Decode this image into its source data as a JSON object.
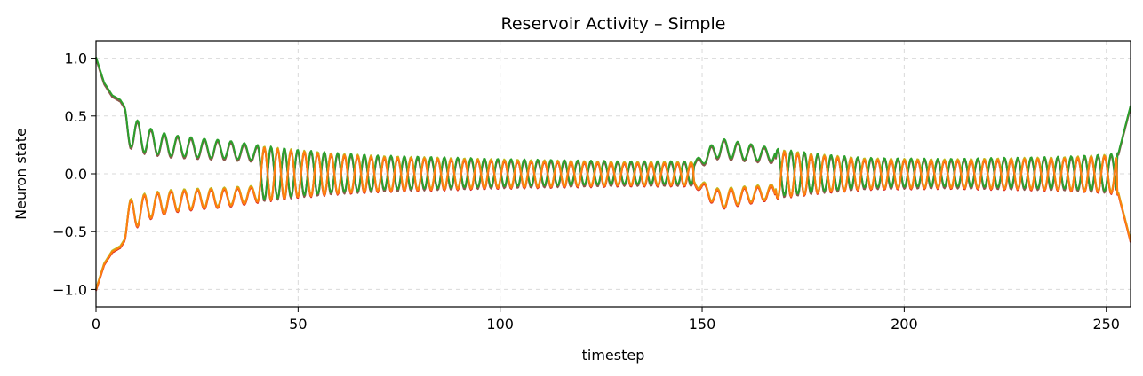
{
  "chart_data": {
    "type": "line",
    "title": "Reservoir Activity – Simple",
    "xlabel": "timestep",
    "ylabel": "Neuron state",
    "xlim": [
      0,
      256
    ],
    "ylim": [
      -1.15,
      1.15
    ],
    "xticks": [
      0,
      50,
      100,
      150,
      200,
      250
    ],
    "yticks": [
      1.0,
      0.5,
      0.0,
      -0.5,
      -1.0
    ],
    "ytick_labels": [
      "1.0",
      "0.5",
      "0.0",
      "−0.5",
      "−1.0"
    ],
    "grid": true,
    "legend": "none",
    "colors": [
      "#17becf",
      "#9467bd",
      "#8c564b",
      "#2ca02c",
      "#1f77b4",
      "#d62728",
      "#bcbd22",
      "#ff7f0e"
    ],
    "envelope_points": [
      [
        0,
        1.0
      ],
      [
        2,
        0.78
      ],
      [
        4,
        0.67
      ],
      [
        6,
        0.63
      ],
      [
        8,
        0.52
      ],
      [
        12,
        0.4
      ],
      [
        18,
        0.33
      ],
      [
        25,
        0.3
      ],
      [
        32,
        0.28
      ],
      [
        40,
        0.24
      ],
      [
        50,
        0.2
      ],
      [
        60,
        0.17
      ],
      [
        70,
        0.15
      ],
      [
        80,
        0.14
      ],
      [
        100,
        0.12
      ],
      [
        130,
        0.1
      ],
      [
        148,
        0.1
      ],
      [
        150,
        0.16
      ],
      [
        154,
        0.3
      ],
      [
        160,
        0.26
      ],
      [
        170,
        0.2
      ],
      [
        180,
        0.16
      ],
      [
        190,
        0.13
      ],
      [
        210,
        0.12
      ],
      [
        240,
        0.14
      ],
      [
        250,
        0.16
      ],
      [
        253,
        0.17
      ],
      [
        256,
        0.58
      ]
    ],
    "oscillation_period": 3.3,
    "series": [
      {
        "group": "upper",
        "offset": 0.0
      },
      {
        "group": "upper",
        "offset": 0.005
      },
      {
        "group": "upper",
        "offset": -0.006
      },
      {
        "group": "upper",
        "offset": 0.01
      },
      {
        "group": "lower",
        "offset": 0.0
      },
      {
        "group": "lower",
        "offset": -0.012
      },
      {
        "group": "lower",
        "offset": 0.006
      },
      {
        "group": "lower",
        "offset": -0.004
      }
    ]
  }
}
